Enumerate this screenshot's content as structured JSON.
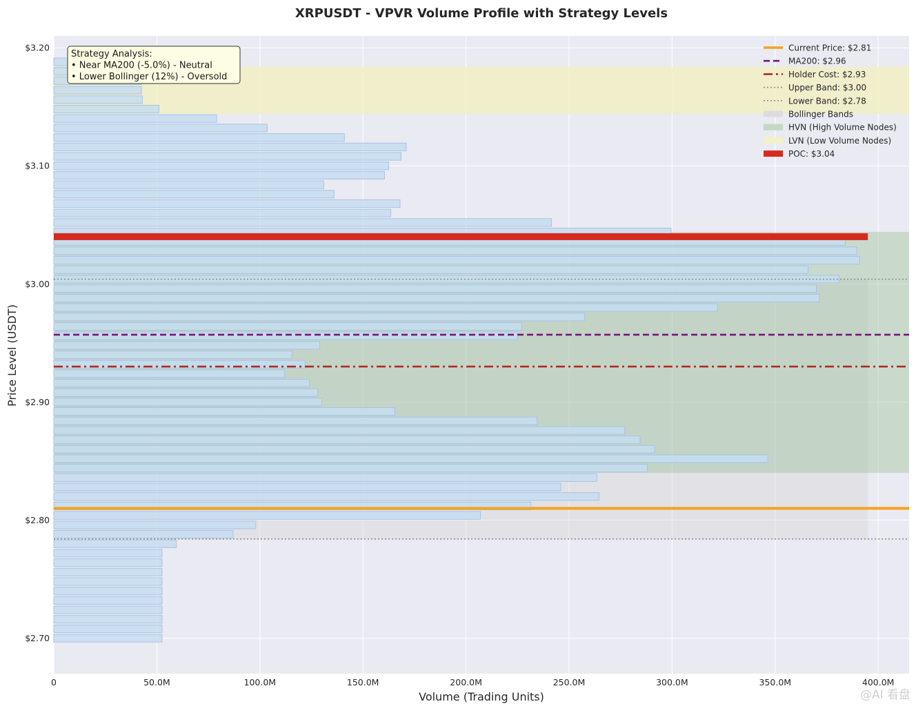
{
  "chart_data": {
    "type": "bar",
    "orientation": "horizontal",
    "title": "XRPUSDT - VPVR Volume Profile with Strategy Levels",
    "xlabel": "Volume (Trading Units)",
    "ylabel": "Price Level (USDT)",
    "xlim": [
      0,
      415
    ],
    "ylim": [
      2.67,
      3.21
    ],
    "x_ticks": [
      0,
      50,
      100,
      150,
      200,
      250,
      300,
      350,
      400
    ],
    "x_tick_labels": [
      "0",
      "50.0M",
      "100.0M",
      "150.0M",
      "200.0M",
      "250.0M",
      "300.0M",
      "350.0M",
      "400.0M"
    ],
    "y_ticks": [
      2.7,
      2.8,
      2.9,
      3.0,
      3.1,
      3.2
    ],
    "y_tick_labels": [
      "$2.70",
      "$2.80",
      "$2.90",
      "$3.00",
      "$3.10",
      "$3.20"
    ],
    "grid": true,
    "legend_position": "top-right",
    "bar_height": 0.0065,
    "bars": [
      {
        "price": 2.7,
        "volume": 52.5
      },
      {
        "price": 2.708,
        "volume": 52.5
      },
      {
        "price": 2.716,
        "volume": 52.5
      },
      {
        "price": 2.724,
        "volume": 52.5
      },
      {
        "price": 2.732,
        "volume": 52.5
      },
      {
        "price": 2.74,
        "volume": 52.5
      },
      {
        "price": 2.748,
        "volume": 52.5
      },
      {
        "price": 2.756,
        "volume": 52.5
      },
      {
        "price": 2.764,
        "volume": 52.5
      },
      {
        "price": 2.772,
        "volume": 52.5
      },
      {
        "price": 2.78,
        "volume": 59.5
      },
      {
        "price": 2.788,
        "volume": 87.0
      },
      {
        "price": 2.796,
        "volume": 98.0
      },
      {
        "price": 2.804,
        "volume": 207.0
      },
      {
        "price": 2.812,
        "volume": 231.5
      },
      {
        "price": 2.82,
        "volume": 264.5
      },
      {
        "price": 2.828,
        "volume": 246.0
      },
      {
        "price": 2.836,
        "volume": 263.5
      },
      {
        "price": 2.844,
        "volume": 288.0
      },
      {
        "price": 2.852,
        "volume": 346.5
      },
      {
        "price": 2.86,
        "volume": 291.5
      },
      {
        "price": 2.868,
        "volume": 284.5
      },
      {
        "price": 2.876,
        "volume": 277.0
      },
      {
        "price": 2.884,
        "volume": 234.5
      },
      {
        "price": 2.892,
        "volume": 165.5
      },
      {
        "price": 2.9,
        "volume": 130.0
      },
      {
        "price": 2.908,
        "volume": 128.0
      },
      {
        "price": 2.916,
        "volume": 124.0
      },
      {
        "price": 2.924,
        "volume": 112.0
      },
      {
        "price": 2.932,
        "volume": 122.0
      },
      {
        "price": 2.94,
        "volume": 115.5
      },
      {
        "price": 2.948,
        "volume": 129.0
      },
      {
        "price": 2.956,
        "volume": 225.0
      },
      {
        "price": 2.964,
        "volume": 227.0
      },
      {
        "price": 2.972,
        "volume": 257.5
      },
      {
        "price": 2.98,
        "volume": 322.0
      },
      {
        "price": 2.988,
        "volume": 371.5
      },
      {
        "price": 2.996,
        "volume": 370.0
      },
      {
        "price": 3.004,
        "volume": 381.0
      },
      {
        "price": 3.012,
        "volume": 366.0
      },
      {
        "price": 3.02,
        "volume": 391.0
      },
      {
        "price": 3.028,
        "volume": 389.5
      },
      {
        "price": 3.036,
        "volume": 384.0
      },
      {
        "price": 3.044,
        "volume": 299.5
      },
      {
        "price": 3.052,
        "volume": 241.5
      },
      {
        "price": 3.06,
        "volume": 163.5
      },
      {
        "price": 3.068,
        "volume": 168.0
      },
      {
        "price": 3.076,
        "volume": 136.0
      },
      {
        "price": 3.084,
        "volume": 131.0
      },
      {
        "price": 3.092,
        "volume": 160.5
      },
      {
        "price": 3.1,
        "volume": 162.5
      },
      {
        "price": 3.108,
        "volume": 168.5
      },
      {
        "price": 3.116,
        "volume": 171.0
      },
      {
        "price": 3.124,
        "volume": 141.0
      },
      {
        "price": 3.132,
        "volume": 103.5
      },
      {
        "price": 3.14,
        "volume": 79.0
      },
      {
        "price": 3.148,
        "volume": 51.0
      },
      {
        "price": 3.156,
        "volume": 43.0
      },
      {
        "price": 3.164,
        "volume": 42.5
      },
      {
        "price": 3.172,
        "volume": 42.5
      },
      {
        "price": 3.18,
        "volume": 40.0
      },
      {
        "price": 3.188,
        "volume": 9.0
      }
    ],
    "poc": {
      "price": 3.04,
      "volume": 395
    },
    "bollinger_band": {
      "lower": 2.784,
      "upper": 3.004,
      "volume_extent": 395
    },
    "hvn_zones": [
      {
        "from": 2.84,
        "to": 3.044
      }
    ],
    "lvn_zones": [
      {
        "from": 3.144,
        "to": 3.184
      }
    ],
    "levels": [
      {
        "id": "current",
        "value": 2.81,
        "style": "solid",
        "color": "#f5a31a",
        "width": 4
      },
      {
        "id": "ma200",
        "value": 2.957,
        "style": "dashed",
        "color": "#76137a",
        "width": 2.6
      },
      {
        "id": "holder",
        "value": 2.93,
        "style": "dashdot",
        "color": "#b02a22",
        "width": 2.6
      },
      {
        "id": "upper",
        "value": 3.004,
        "style": "dotted",
        "color": "#8a8a8a",
        "width": 1.6
      },
      {
        "id": "lower",
        "value": 2.784,
        "style": "dotted",
        "color": "#8a8a8a",
        "width": 1.6
      }
    ],
    "legend": [
      {
        "label": "Current Price: $2.81",
        "kind": "line",
        "color": "#f5a31a",
        "style": "solid"
      },
      {
        "label": "MA200: $2.96",
        "kind": "line",
        "color": "#76137a",
        "style": "dashed"
      },
      {
        "label": "Holder Cost: $2.93",
        "kind": "line",
        "color": "#b02a22",
        "style": "dashdot"
      },
      {
        "label": "Upper Band: $3.00",
        "kind": "line",
        "color": "#8a8a8a",
        "style": "dotted"
      },
      {
        "label": "Lower Band: $2.78",
        "kind": "line",
        "color": "#8a8a8a",
        "style": "dotted"
      },
      {
        "label": "Bollinger Bands",
        "kind": "patch",
        "color": "#dcdcdc"
      },
      {
        "label": "HVN (High Volume Nodes)",
        "kind": "patch",
        "color": "#c2d8c2"
      },
      {
        "label": "LVN (Low Volume Nodes)",
        "kind": "patch",
        "color": "#f3f1c6"
      },
      {
        "label": "POC: $3.04",
        "kind": "patch",
        "color": "#d62a1e"
      }
    ],
    "annotation": {
      "lines": [
        "Strategy Analysis:",
        "• Near MA200 (-5.0%) - Neutral",
        "• Lower Bollinger (12%) - Oversold"
      ]
    },
    "colors": {
      "plot_background": "#eaeaf2",
      "bar_fill": "#c6ddf0",
      "bar_edge": "#a9c2e6",
      "grid": "#ffffff"
    }
  },
  "watermark": "@AI 看盘"
}
